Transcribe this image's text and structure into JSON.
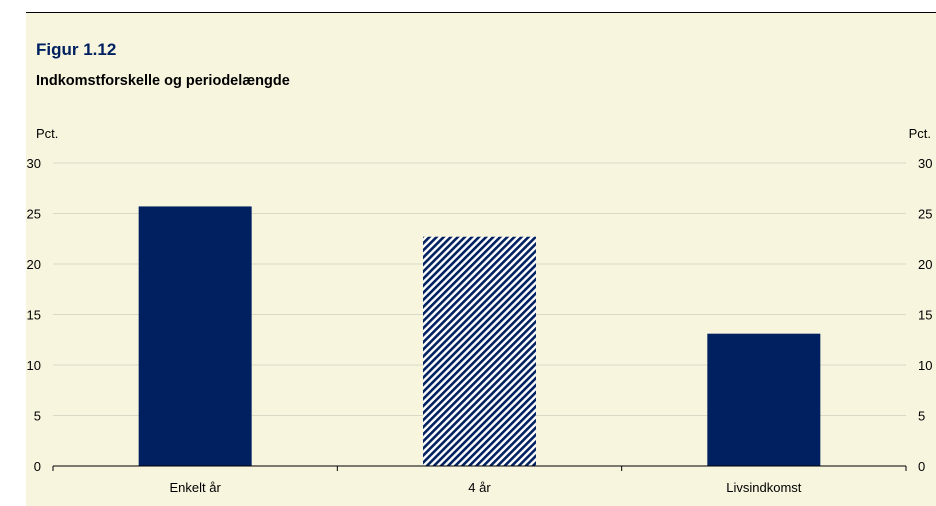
{
  "figure": {
    "number": "Figur 1.12",
    "title": "Indkomstforskelle og periodelængde"
  },
  "colors": {
    "panel_bg": "#f8f5df",
    "bar": "#002060",
    "grid": "#d9d9c8",
    "figure_number": "#002060"
  },
  "chart_data": {
    "type": "bar",
    "title": "Indkomstforskelle og periodelængde",
    "categories": [
      "Enkelt år",
      "4 år",
      "Livsindkomst"
    ],
    "values": [
      25.7,
      22.7,
      13.1
    ],
    "bar_styles": [
      "solid",
      "hatched",
      "solid"
    ],
    "ylabel_left": "Pct.",
    "ylabel_right": "Pct.",
    "ylim": [
      0,
      30
    ],
    "yticks": [
      0,
      5,
      10,
      15,
      20,
      25,
      30
    ],
    "grid": true,
    "legend": "none"
  }
}
